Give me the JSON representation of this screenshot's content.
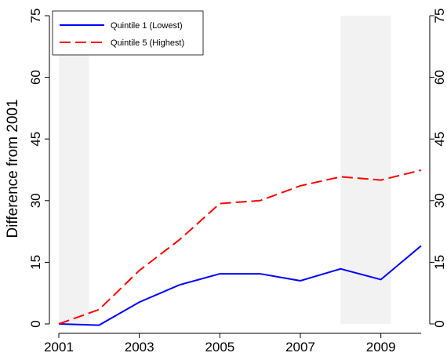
{
  "chart_data": {
    "type": "line",
    "y_label": "Difference from 2001",
    "x": [
      2001,
      2002,
      2003,
      2004,
      2005,
      2006,
      2007,
      2008,
      2009,
      2010
    ],
    "series": [
      {
        "name": "Quintile 1 (Lowest)",
        "color": "#0000ff",
        "dash": "solid",
        "values": [
          0,
          -0.3,
          5.3,
          9.5,
          12.2,
          12.2,
          10.5,
          13.4,
          10.8,
          19
        ]
      },
      {
        "name": "Quintile 5 (Highest)",
        "color": "#ff0000",
        "dash": "dashed",
        "values": [
          0,
          3.5,
          13,
          20.5,
          29.3,
          30,
          33.6,
          35.8,
          35,
          37.4
        ]
      }
    ],
    "shaded_regions": [
      [
        2001,
        2001.75
      ],
      [
        2008,
        2009.25
      ]
    ],
    "shade_color": "#f2f2f2",
    "xlim": [
      2001,
      2010
    ],
    "xticks": [
      2001,
      2003,
      2005,
      2007,
      2009
    ],
    "ylim": [
      0,
      75
    ],
    "yticks": [
      0,
      15,
      30,
      45,
      60,
      75
    ],
    "y2lim": [
      0,
      75
    ],
    "y2ticks": [
      0,
      15,
      30,
      45,
      60,
      75
    ],
    "legend": "upper-left"
  }
}
